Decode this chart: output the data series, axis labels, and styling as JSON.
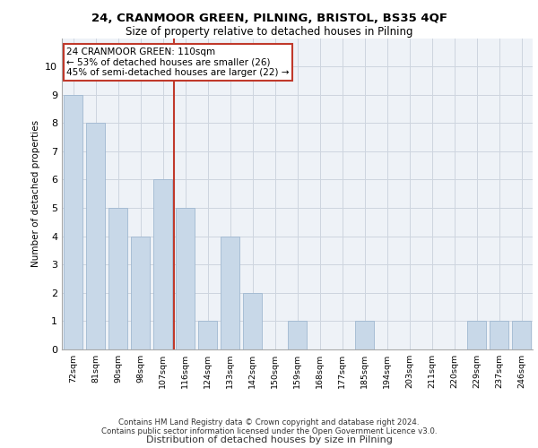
{
  "title1": "24, CRANMOOR GREEN, PILNING, BRISTOL, BS35 4QF",
  "title2": "Size of property relative to detached houses in Pilning",
  "xlabel": "Distribution of detached houses by size in Pilning",
  "ylabel": "Number of detached properties",
  "categories": [
    "72sqm",
    "81sqm",
    "90sqm",
    "98sqm",
    "107sqm",
    "116sqm",
    "124sqm",
    "133sqm",
    "142sqm",
    "150sqm",
    "159sqm",
    "168sqm",
    "177sqm",
    "185sqm",
    "194sqm",
    "203sqm",
    "211sqm",
    "220sqm",
    "229sqm",
    "237sqm",
    "246sqm"
  ],
  "values": [
    9,
    8,
    5,
    4,
    6,
    5,
    1,
    4,
    2,
    0,
    1,
    0,
    0,
    1,
    0,
    0,
    0,
    0,
    1,
    1,
    1
  ],
  "bar_color": "#c8d8e8",
  "bar_edgecolor": "#a0b8d0",
  "vline_x": 4.5,
  "vline_color": "#c0392b",
  "annotation_text": "24 CRANMOOR GREEN: 110sqm\n← 53% of detached houses are smaller (26)\n45% of semi-detached houses are larger (22) →",
  "annotation_box_color": "#c0392b",
  "ylim": [
    0,
    11
  ],
  "yticks": [
    0,
    1,
    2,
    3,
    4,
    5,
    6,
    7,
    8,
    9,
    10,
    11
  ],
  "footer1": "Contains HM Land Registry data © Crown copyright and database right 2024.",
  "footer2": "Contains public sector information licensed under the Open Government Licence v3.0.",
  "bg_color": "#eef2f7",
  "grid_color": "#cdd5df"
}
